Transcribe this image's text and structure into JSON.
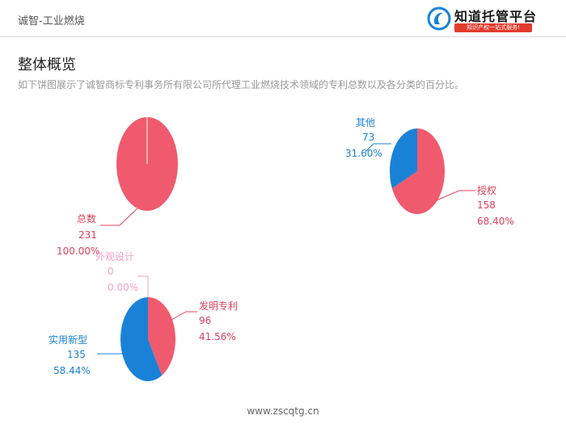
{
  "header": {
    "breadcrumb": "诚智-工业燃烧",
    "logo_name": "知道托管平台",
    "logo_tagline": "知识产权一站式服务!"
  },
  "main": {
    "title": "整体概览",
    "description": "如下饼图展示了诚智商标专利事务所有限公司所代理工业燃烧技术领域的专利总数以及各分类的百分比。"
  },
  "footer": {
    "url": "www.zscqtg.cn"
  },
  "colors": {
    "red": "#f05a6e",
    "blue": "#1a82d6",
    "pink": "#f5a0c8",
    "label_red": "#e0405a",
    "label_blue": "#1a82d6"
  },
  "chart_data": [
    {
      "type": "pie",
      "slices": [
        {
          "label": "总数",
          "value": 231,
          "percent": "100.00%"
        }
      ]
    },
    {
      "type": "pie",
      "slices": [
        {
          "label": "其他",
          "value": 73,
          "percent": "31.60%"
        },
        {
          "label": "授权",
          "value": 158,
          "percent": "68.40%"
        }
      ]
    },
    {
      "type": "pie",
      "slices": [
        {
          "label": "外观设计",
          "value": 0,
          "percent": "0.00%"
        },
        {
          "label": "发明专利",
          "value": 96,
          "percent": "41.56%"
        },
        {
          "label": "实用新型",
          "value": 135,
          "percent": "58.44%"
        }
      ]
    }
  ]
}
